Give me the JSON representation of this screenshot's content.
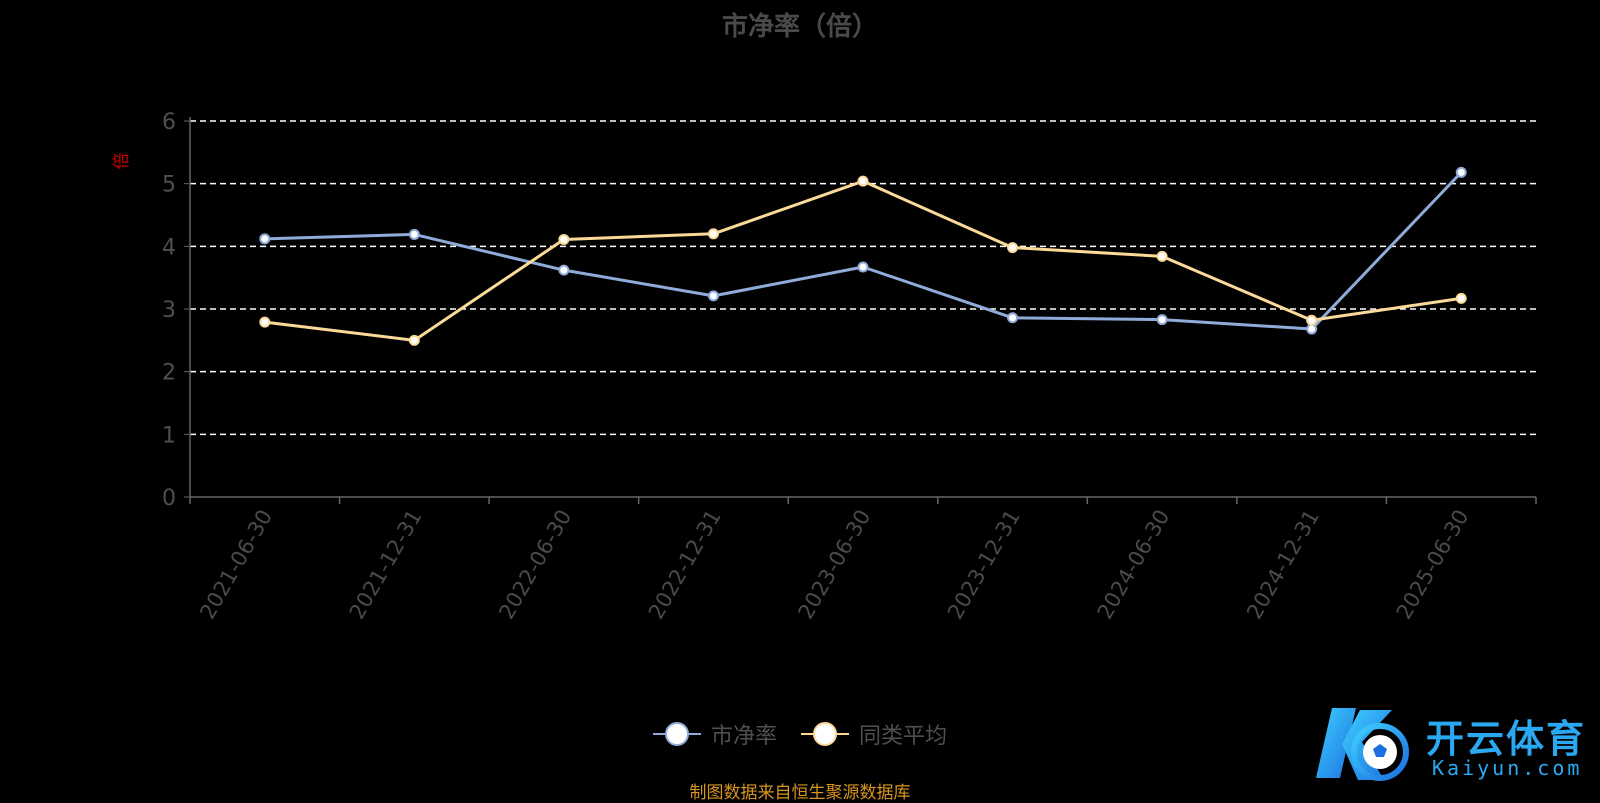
{
  "chart_data": {
    "type": "line",
    "title": "市净率（倍）",
    "ylabel": "倍",
    "xlabel": "",
    "categories": [
      "2021-06-30",
      "2021-12-31",
      "2022-06-30",
      "2022-12-31",
      "2023-06-30",
      "2023-12-31",
      "2024-06-30",
      "2024-12-31",
      "2025-06-30"
    ],
    "ylim": [
      0,
      6
    ],
    "yticks": [
      0,
      1,
      2,
      3,
      4,
      5,
      6
    ],
    "grid": "horizontal dashed",
    "legend_position": "bottom-center",
    "series": [
      {
        "name": "市净率",
        "color": "#8fabd9",
        "values": [
          4.12,
          4.19,
          3.62,
          3.21,
          3.67,
          2.86,
          2.83,
          2.68,
          5.18
        ]
      },
      {
        "name": "同类平均",
        "color": "#fbd999",
        "values": [
          2.79,
          2.5,
          4.11,
          4.2,
          5.04,
          3.98,
          3.84,
          2.82,
          3.17
        ]
      }
    ]
  },
  "footer_note": "制图数据来自恒生聚源数据库",
  "logo": {
    "name": "开云体育",
    "domain": "Kaiyun.com"
  },
  "colors": {
    "background": "#000000",
    "title": "#4a4a4a",
    "ylabel": "#cc0000",
    "footer": "#d7951f",
    "logo": "#2aa8f1"
  }
}
